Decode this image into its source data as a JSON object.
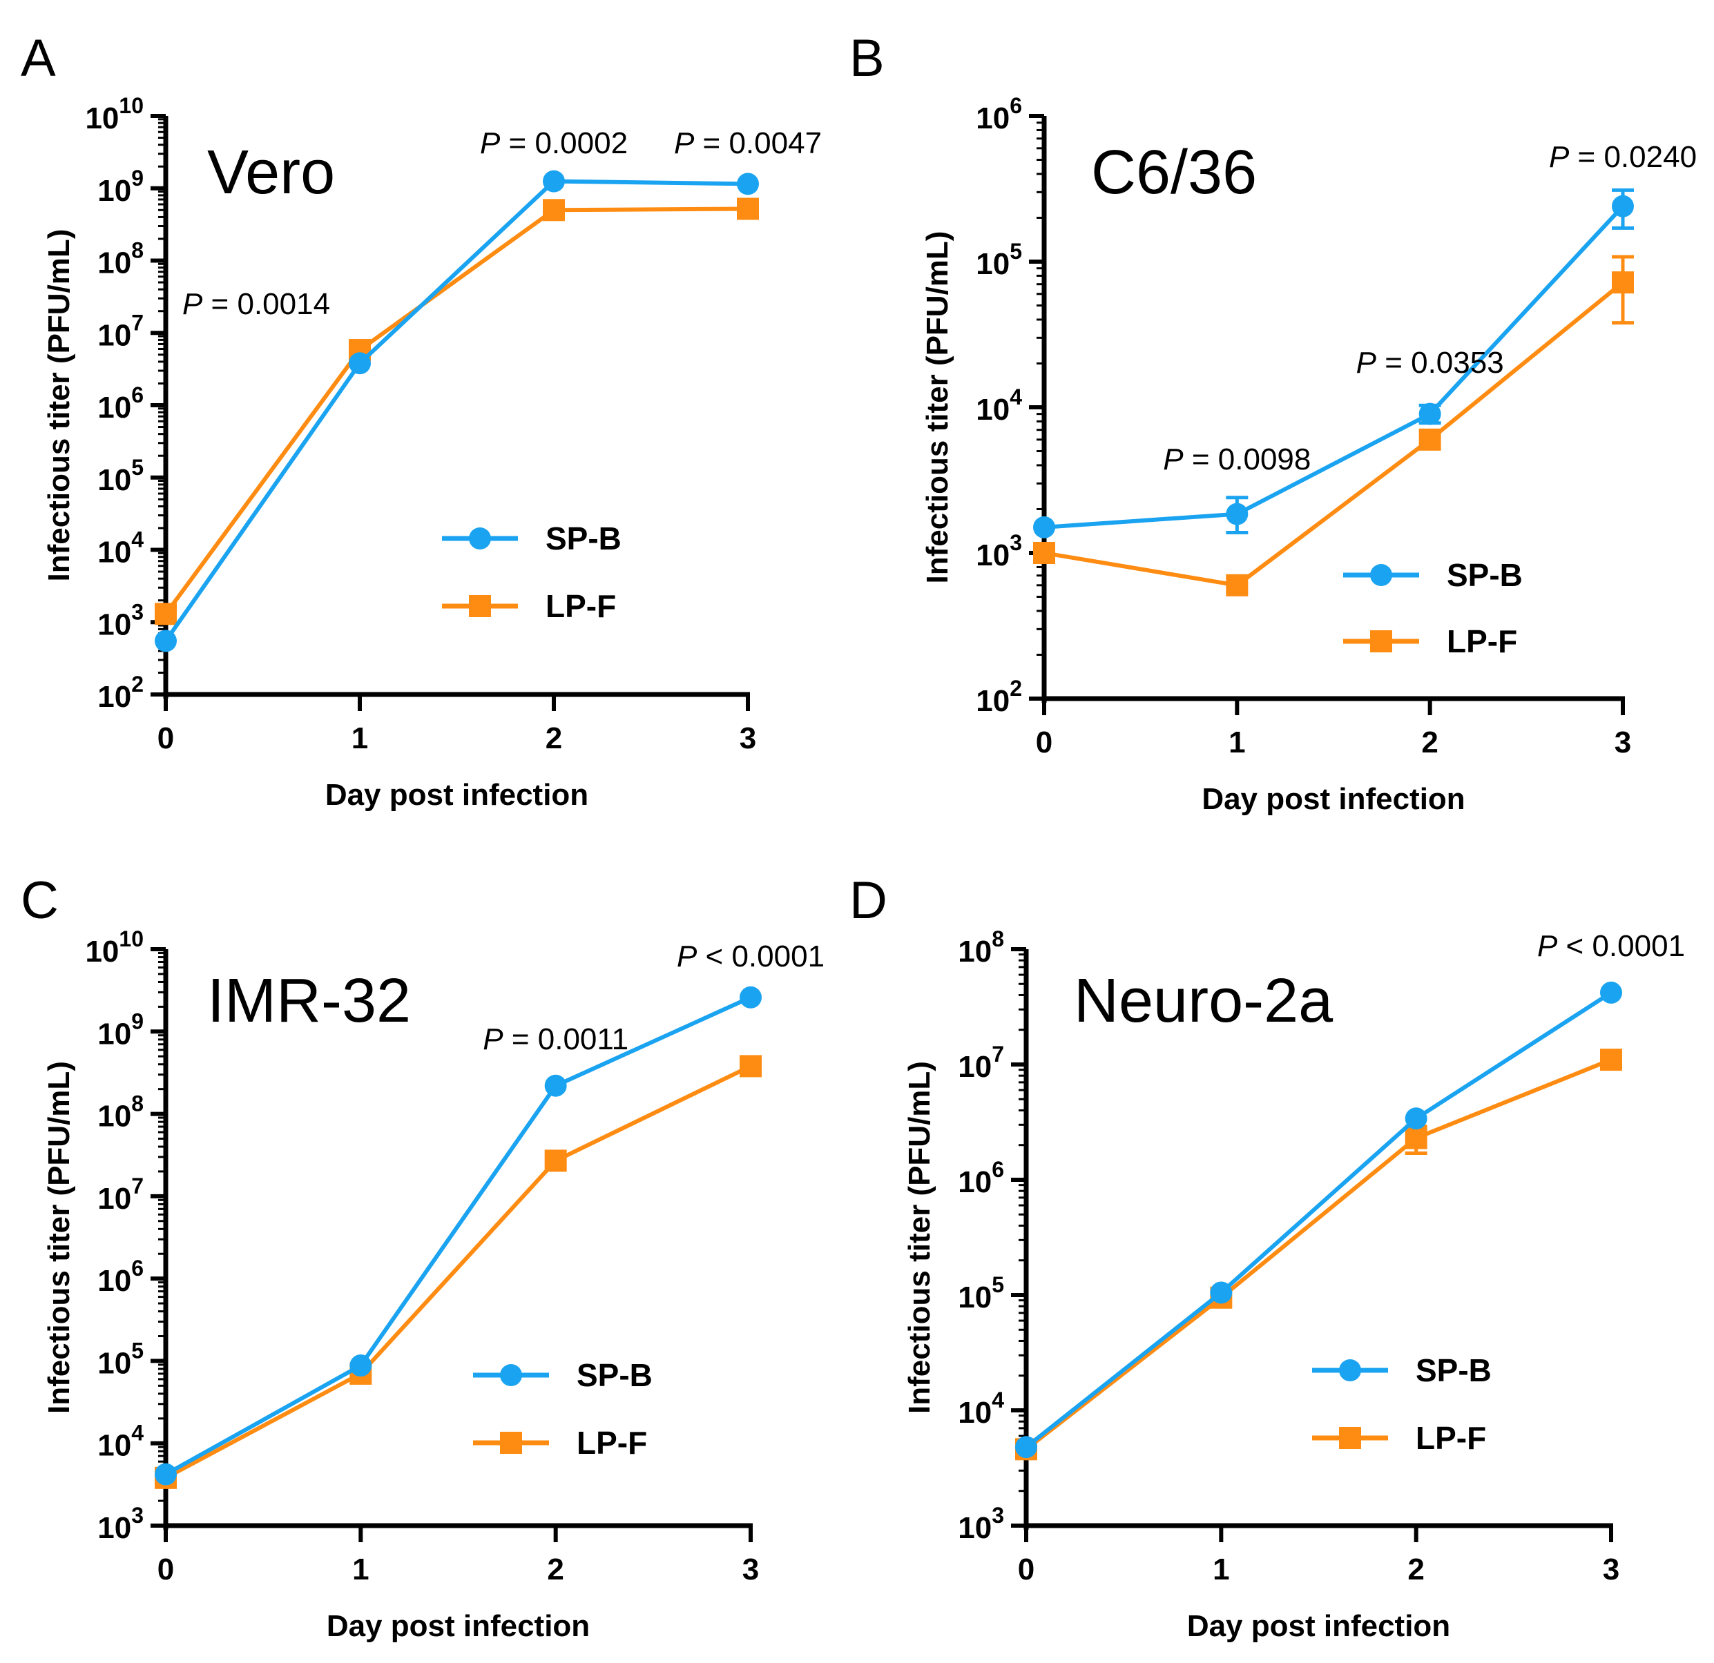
{
  "chart_data": [
    {
      "type": "line",
      "panel": "A",
      "cell_line": "Vero",
      "xlabel": "Day post infection",
      "ylabel": "Infectious titer (PFU/mL)",
      "x": [
        0,
        1,
        2,
        3
      ],
      "x_ticks": [
        "0",
        "1",
        "2",
        "3"
      ],
      "y_scale": "log",
      "ylim_exp": [
        2,
        10
      ],
      "y_tick_exps": [
        "2",
        "3",
        "4",
        "5",
        "6",
        "7",
        "8",
        "9",
        "10"
      ],
      "series": [
        {
          "name": "SP-B",
          "marker": "circle",
          "color": "#1aa3f0",
          "values": [
            550,
            3800000,
            1250000000,
            1150000000
          ]
        },
        {
          "name": "LP-F",
          "marker": "square",
          "color": "#ff8c12",
          "values": [
            1300,
            5800000,
            500000000,
            520000000
          ]
        }
      ],
      "annotations": [
        {
          "day": 1,
          "p": "P",
          "text": " = 0.0014"
        },
        {
          "day": 2,
          "p": "P",
          "text": " = 0.0002"
        },
        {
          "day": 3,
          "p": "P",
          "text": " = 0.0047"
        }
      ]
    },
    {
      "type": "line",
      "panel": "B",
      "cell_line": "C6/36",
      "xlabel": "Day post infection",
      "ylabel": "Infectious titer (PFU/mL)",
      "x": [
        0,
        1,
        2,
        3
      ],
      "x_ticks": [
        "0",
        "1",
        "2",
        "3"
      ],
      "y_scale": "log",
      "ylim_exp": [
        2,
        6
      ],
      "y_tick_exps": [
        "2",
        "3",
        "4",
        "5",
        "6"
      ],
      "series": [
        {
          "name": "SP-B",
          "marker": "circle",
          "color": "#1aa3f0",
          "values": [
            1500,
            1850,
            9000,
            240000
          ],
          "err_low": [
            1500,
            1380,
            7800,
            170000
          ],
          "err_high": [
            1500,
            2400,
            10300,
            310000
          ]
        },
        {
          "name": "LP-F",
          "marker": "square",
          "color": "#ff8c12",
          "values": [
            1000,
            600,
            6000,
            72000
          ],
          "err_low": [
            1000,
            600,
            6000,
            38000
          ],
          "err_high": [
            1000,
            600,
            6000,
            108000
          ]
        }
      ],
      "annotations": [
        {
          "day": 1,
          "p": "P",
          "text": " = 0.0098"
        },
        {
          "day": 2,
          "p": "P",
          "text": " = 0.0353"
        },
        {
          "day": 3,
          "p": "P",
          "text": " = 0.0240"
        }
      ]
    },
    {
      "type": "line",
      "panel": "C",
      "cell_line": "IMR-32",
      "xlabel": "Day post infection",
      "ylabel": "Infectious titer (PFU/mL)",
      "x": [
        0,
        1,
        2,
        3
      ],
      "x_ticks": [
        "0",
        "1",
        "2",
        "3"
      ],
      "y_scale": "log",
      "ylim_exp": [
        3,
        10
      ],
      "y_tick_exps": [
        "3",
        "4",
        "5",
        "6",
        "7",
        "8",
        "9",
        "10"
      ],
      "series": [
        {
          "name": "SP-B",
          "marker": "circle",
          "color": "#1aa3f0",
          "values": [
            4200,
            88000,
            220000000,
            2600000000
          ]
        },
        {
          "name": "LP-F",
          "marker": "square",
          "color": "#ff8c12",
          "values": [
            3800,
            70000,
            27000000,
            380000000
          ]
        }
      ],
      "annotations": [
        {
          "day": 2,
          "p": "P",
          "text": " = 0.0011"
        },
        {
          "day": 3,
          "p": "P",
          "text": " < 0.0001"
        }
      ]
    },
    {
      "type": "line",
      "panel": "D",
      "cell_line": "Neuro-2a",
      "xlabel": "Day post infection",
      "ylabel": "Infectious titer (PFU/mL)",
      "x": [
        0,
        1,
        2,
        3
      ],
      "x_ticks": [
        "0",
        "1",
        "2",
        "3"
      ],
      "y_scale": "log",
      "ylim_exp": [
        3,
        8
      ],
      "y_tick_exps": [
        "3",
        "4",
        "5",
        "6",
        "7",
        "8"
      ],
      "series": [
        {
          "name": "SP-B",
          "marker": "circle",
          "color": "#1aa3f0",
          "values": [
            4800,
            105000,
            3400000,
            42000000
          ]
        },
        {
          "name": "LP-F",
          "marker": "square",
          "color": "#ff8c12",
          "values": [
            4600,
            95000,
            2300000,
            11000000
          ],
          "err_low": [
            4600,
            95000,
            1700000,
            11000000
          ],
          "err_high": [
            4600,
            95000,
            2900000,
            11000000
          ]
        }
      ],
      "annotations": [
        {
          "day": 3,
          "p": "P",
          "text": " < 0.0001"
        }
      ]
    }
  ]
}
